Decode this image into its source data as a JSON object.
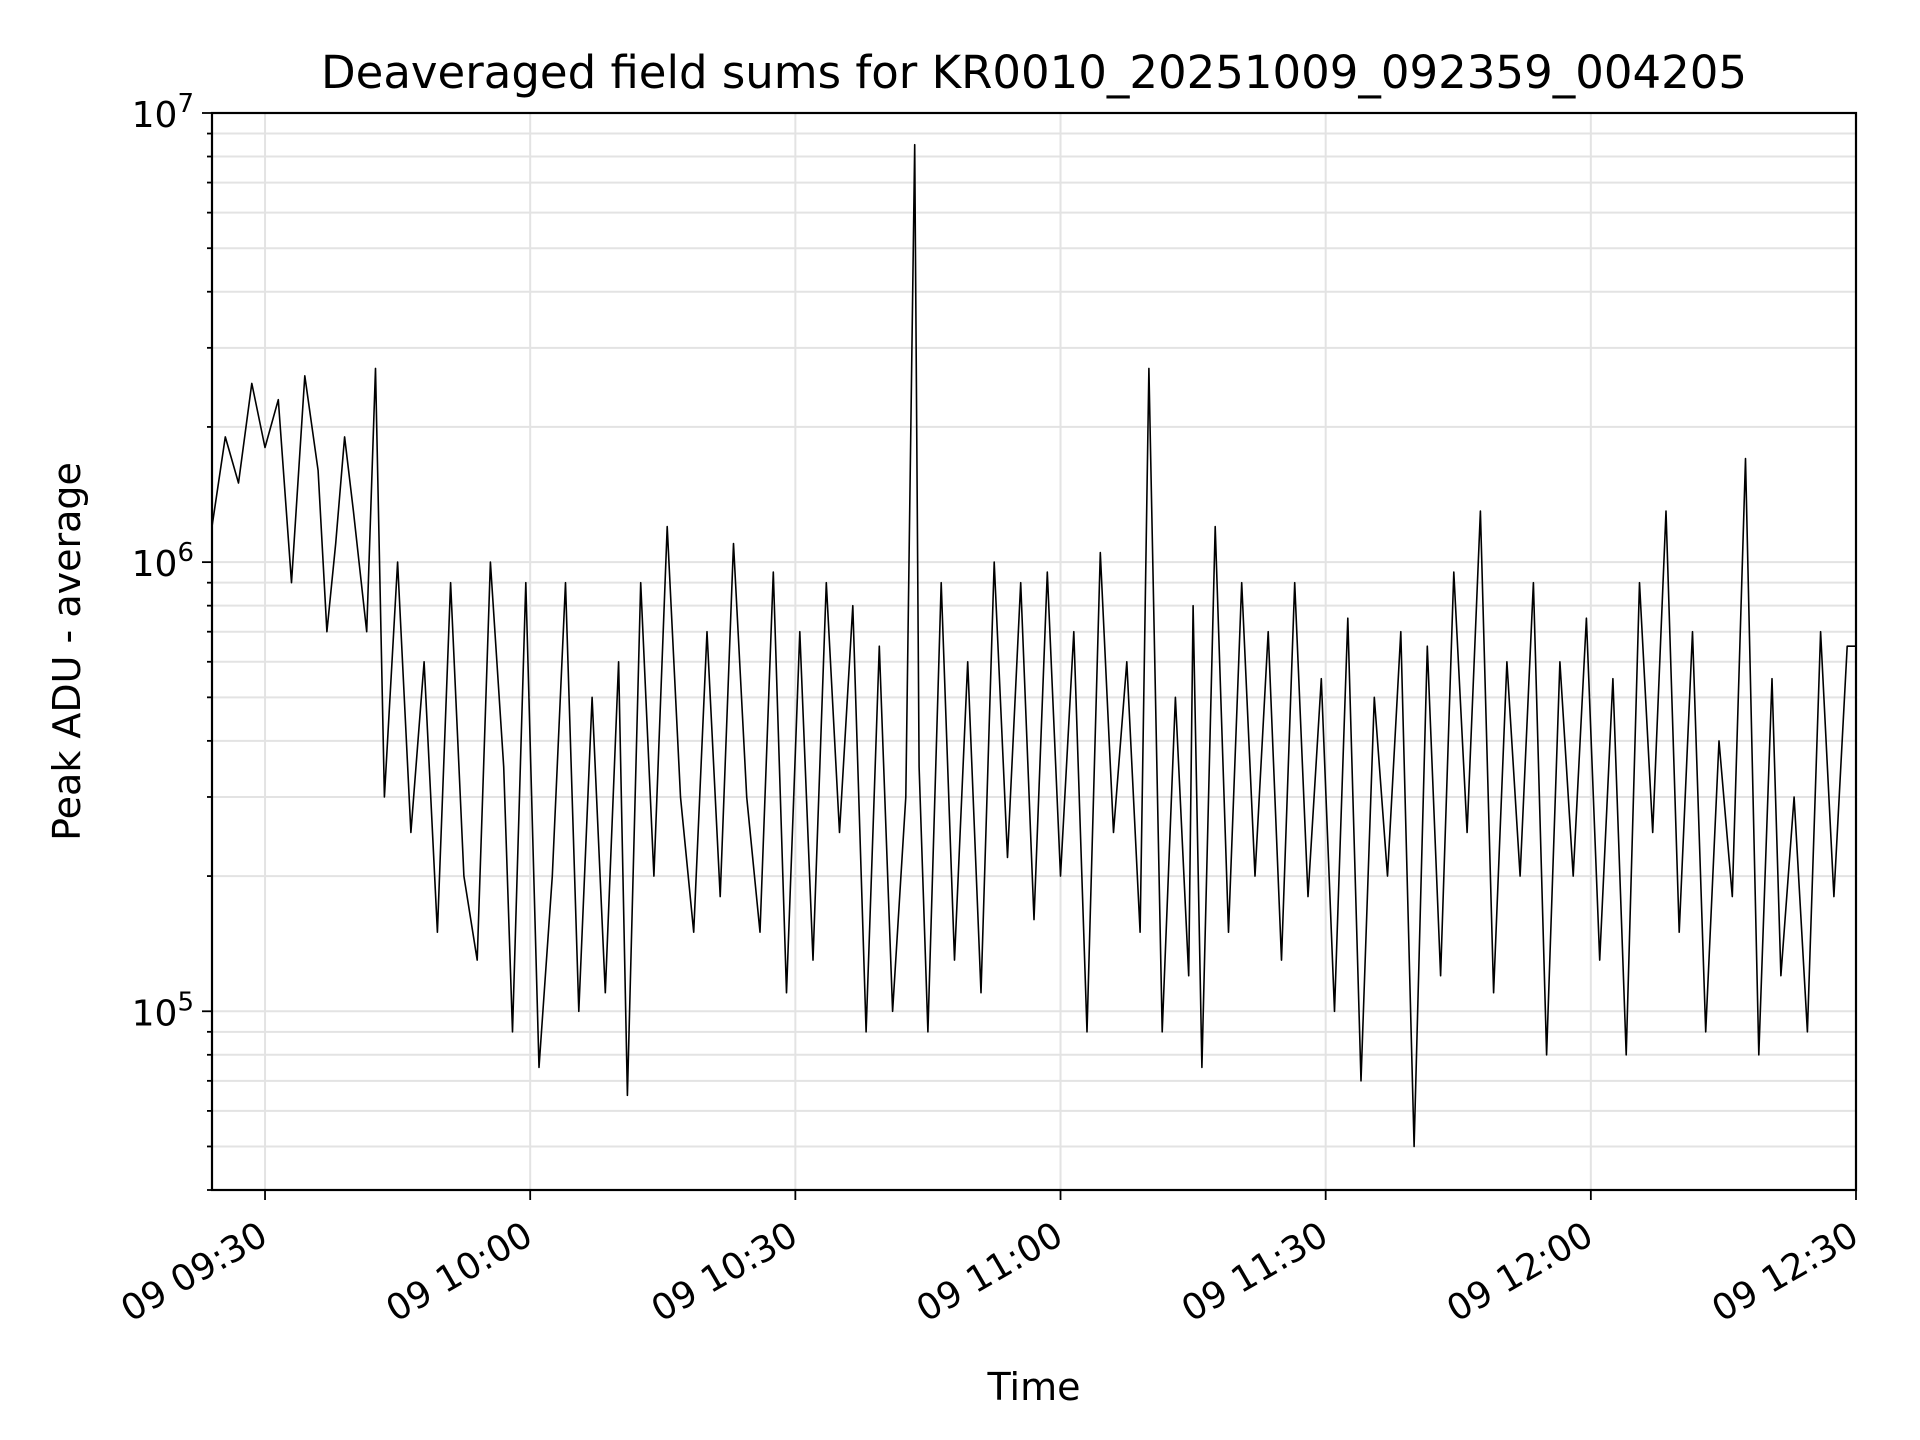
{
  "chart_data": {
    "type": "line",
    "title": "Deaveraged field sums for KR0010_20251009_092359_004205",
    "xlabel": "Time",
    "ylabel": "Peak ADU - average",
    "yscale": "log",
    "ylim": [
      40000,
      10000000
    ],
    "xlim_minutes": [
      564,
      750
    ],
    "grid": true,
    "x_tick_labels": [
      "09 09:30",
      "09 10:00",
      "09 10:30",
      "09 11:00",
      "09 11:30",
      "09 12:00",
      "09 12:30"
    ],
    "x_tick_minutes": [
      570,
      600,
      630,
      660,
      690,
      720,
      750
    ],
    "y_tick_labels": [
      {
        "base": "10",
        "exp": "5",
        "value": 100000
      },
      {
        "base": "10",
        "exp": "6",
        "value": 1000000
      },
      {
        "base": "10",
        "exp": "7",
        "value": 10000000
      }
    ],
    "series": [
      {
        "name": "field sums",
        "color": "#000000",
        "x_minutes": [
          564.0,
          565.5,
          567.0,
          568.5,
          570.0,
          571.5,
          573.0,
          574.5,
          576.0,
          577.0,
          578.0,
          579.0,
          580.0,
          581.5,
          582.5,
          583.5,
          585.0,
          586.5,
          588.0,
          589.5,
          591.0,
          592.5,
          594.0,
          595.5,
          597.0,
          598.0,
          599.5,
          601.0,
          602.5,
          604.0,
          605.5,
          607.0,
          608.5,
          610.0,
          611.0,
          612.5,
          614.0,
          615.5,
          617.0,
          618.5,
          620.0,
          621.5,
          623.0,
          624.5,
          626.0,
          627.5,
          629.0,
          630.5,
          632.0,
          633.5,
          635.0,
          636.5,
          638.0,
          639.5,
          641.0,
          642.5,
          643.5,
          644.0,
          645.0,
          646.5,
          648.0,
          649.5,
          651.0,
          652.5,
          654.0,
          655.5,
          657.0,
          658.5,
          660.0,
          661.5,
          663.0,
          664.5,
          666.0,
          667.5,
          669.0,
          670.0,
          671.5,
          673.0,
          674.5,
          675.0,
          676.0,
          677.5,
          679.0,
          680.5,
          682.0,
          683.5,
          685.0,
          686.5,
          688.0,
          689.5,
          691.0,
          692.5,
          694.0,
          695.5,
          697.0,
          698.5,
          700.0,
          701.5,
          703.0,
          704.5,
          706.0,
          707.5,
          709.0,
          710.5,
          712.0,
          713.5,
          715.0,
          716.5,
          718.0,
          719.5,
          721.0,
          722.5,
          724.0,
          725.5,
          727.0,
          728.5,
          730.0,
          731.5,
          733.0,
          734.5,
          736.0,
          737.5,
          739.0,
          740.5,
          741.5,
          743.0,
          744.5,
          746.0,
          747.5,
          749.0,
          750.0
        ],
        "y": [
          1200000,
          1900000,
          1500000,
          2500000,
          1800000,
          2300000,
          900000,
          2600000,
          1600000,
          700000,
          1100000,
          1900000,
          1300000,
          700000,
          2700000,
          300000,
          1000000,
          250000,
          600000,
          150000,
          900000,
          200000,
          130000,
          1000000,
          350000,
          90000,
          900000,
          75000,
          200000,
          900000,
          100000,
          500000,
          110000,
          600000,
          65000,
          900000,
          200000,
          1200000,
          300000,
          150000,
          700000,
          180000,
          1100000,
          300000,
          150000,
          950000,
          110000,
          700000,
          130000,
          900000,
          250000,
          800000,
          90000,
          650000,
          100000,
          300000,
          8500000,
          350000,
          90000,
          900000,
          130000,
          600000,
          110000,
          1000000,
          220000,
          900000,
          160000,
          950000,
          200000,
          700000,
          90000,
          1050000,
          250000,
          600000,
          150000,
          2700000,
          90000,
          500000,
          120000,
          800000,
          75000,
          1200000,
          150000,
          900000,
          200000,
          700000,
          130000,
          900000,
          180000,
          550000,
          100000,
          750000,
          70000,
          500000,
          200000,
          700000,
          50000,
          650000,
          120000,
          950000,
          250000,
          1300000,
          110000,
          600000,
          200000,
          900000,
          80000,
          600000,
          200000,
          750000,
          130000,
          550000,
          80000,
          900000,
          250000,
          1300000,
          150000,
          700000,
          90000,
          400000,
          180000,
          1700000,
          80000,
          550000,
          120000,
          300000,
          90000,
          700000,
          180000,
          650000,
          650000
        ]
      }
    ]
  }
}
